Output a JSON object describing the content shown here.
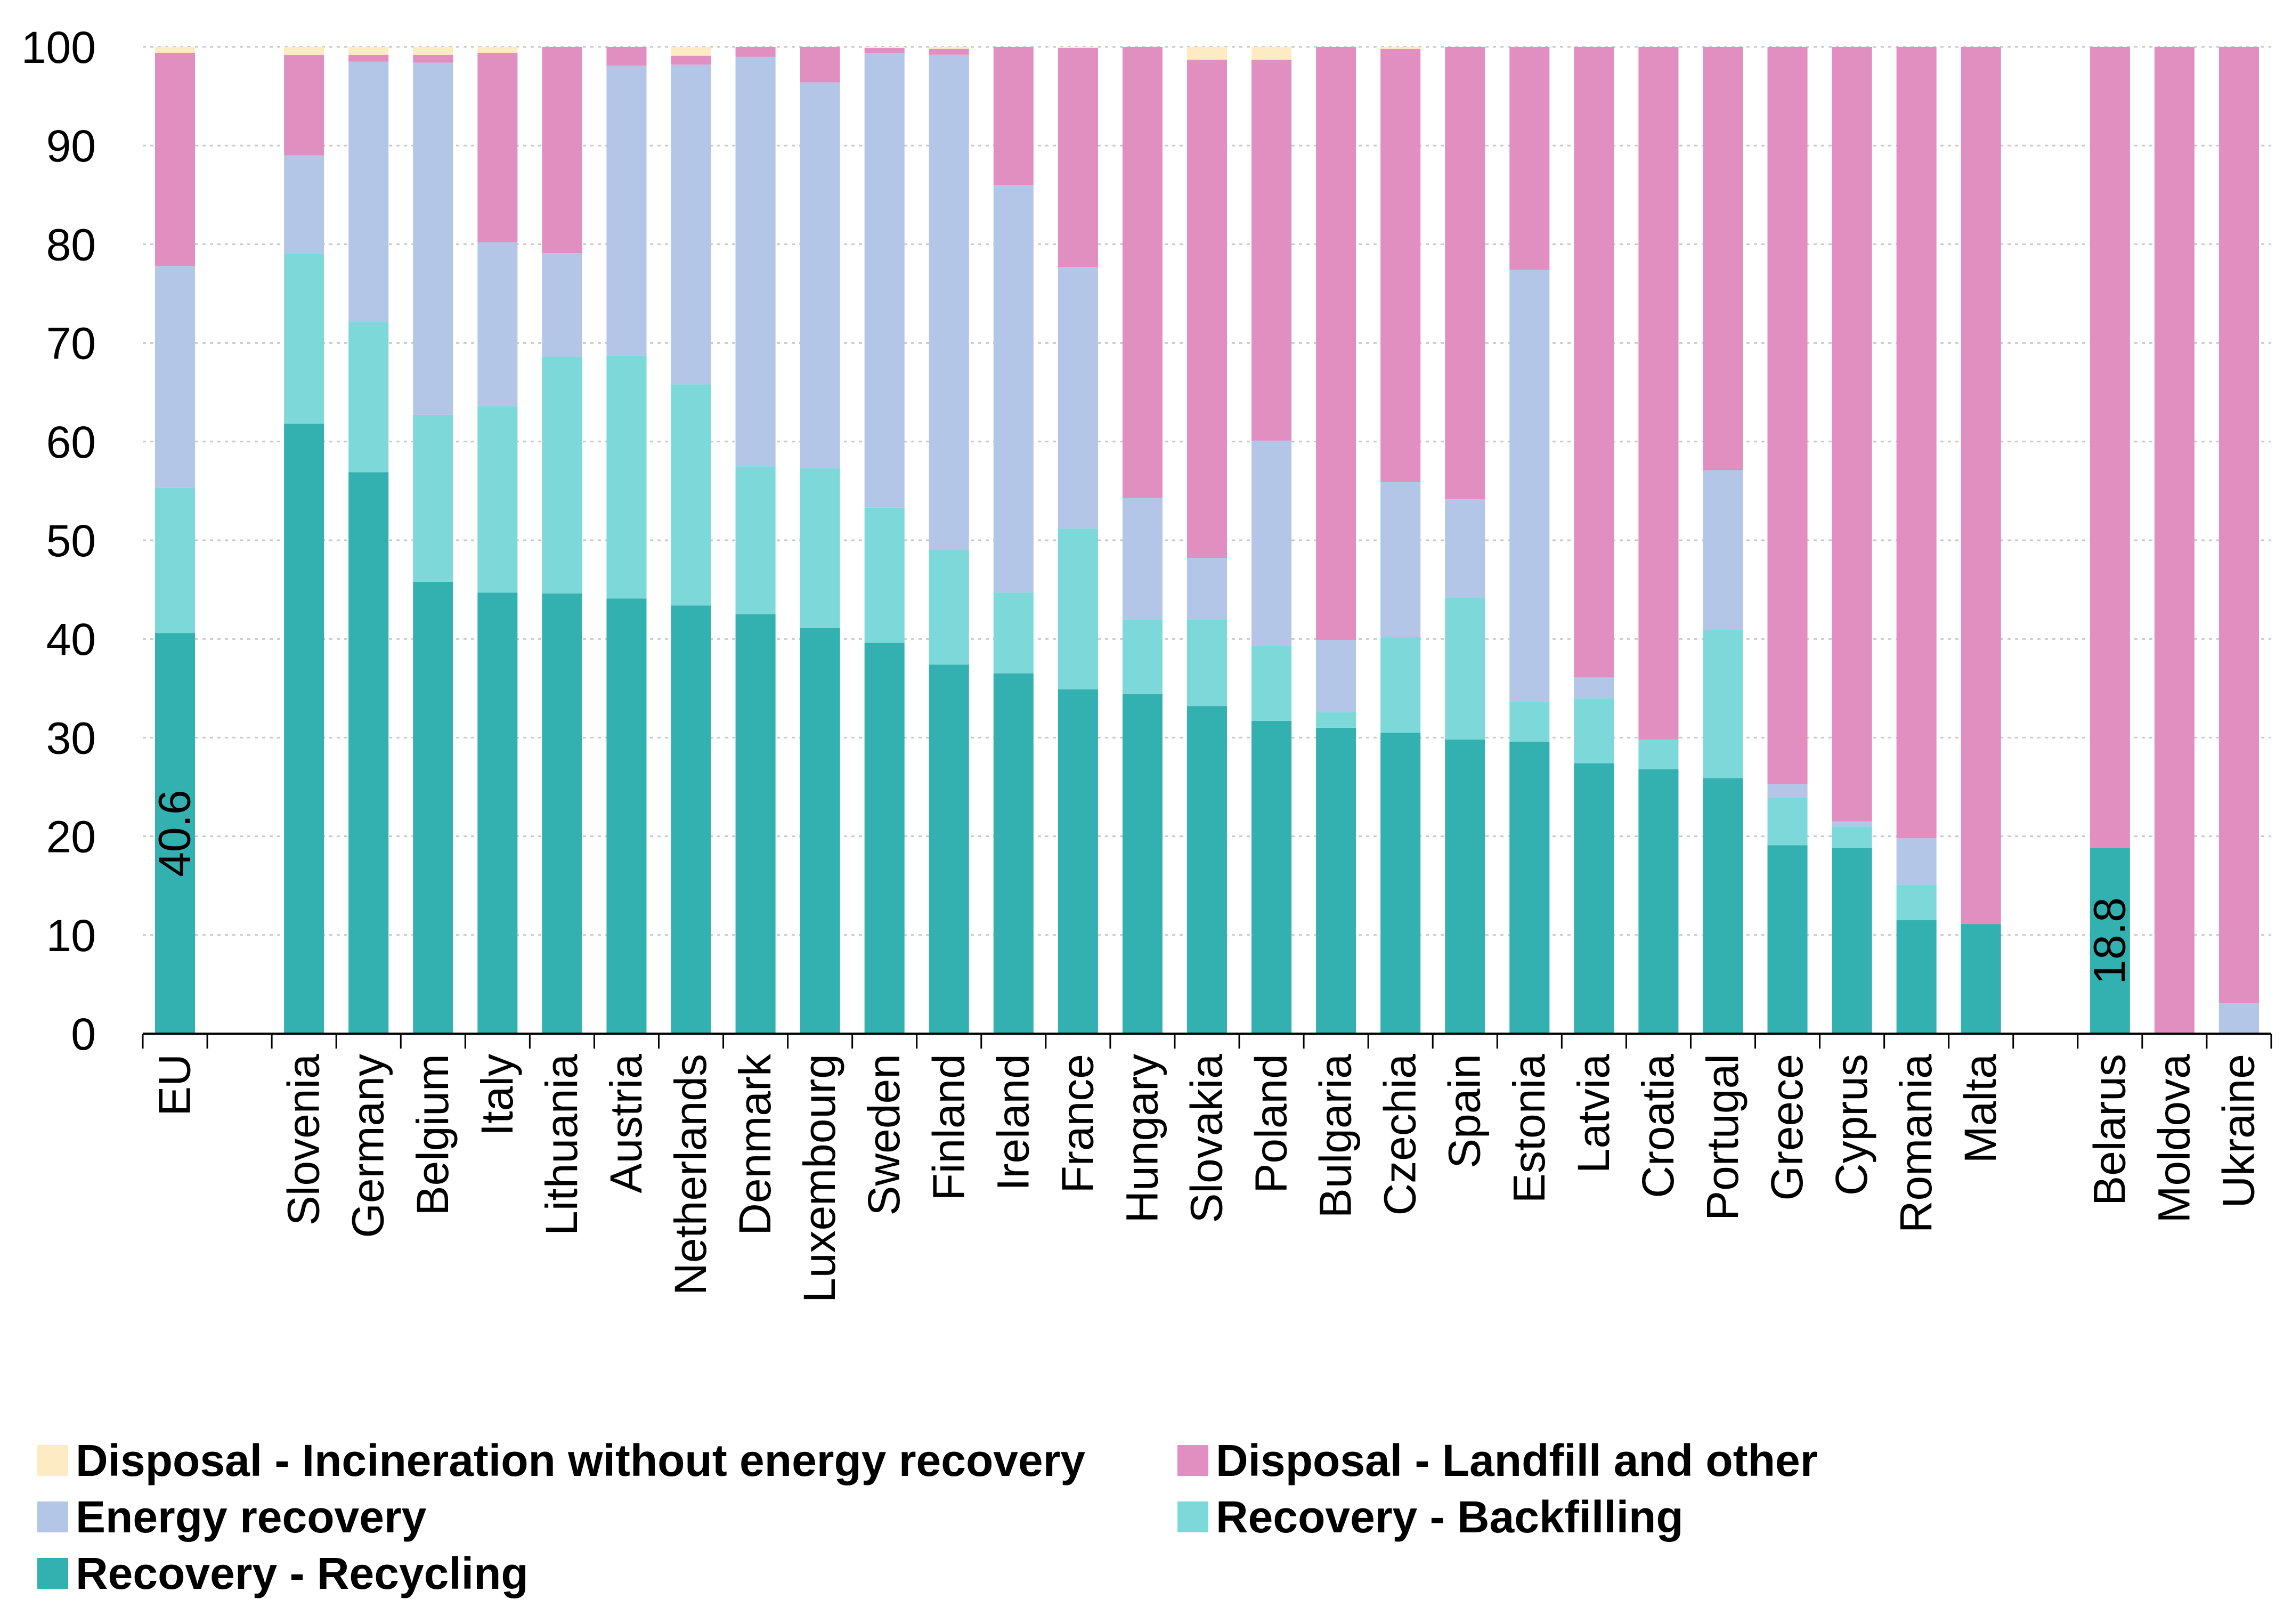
{
  "chart_data": {
    "type": "bar",
    "stacked": true,
    "title": "",
    "xlabel": "",
    "ylabel": "",
    "ylim": [
      0,
      100
    ],
    "yticks": [
      0,
      10,
      20,
      30,
      40,
      50,
      60,
      70,
      80,
      90,
      100
    ],
    "grid": true,
    "legend_position": "bottom",
    "categories": [
      "EU",
      "",
      "Slovenia",
      "Germany",
      "Belgium",
      "Italy",
      "Lithuania",
      "Austria",
      "Netherlands",
      "Denmark",
      "Luxembourg",
      "Sweden",
      "Finland",
      "Ireland",
      "France",
      "Hungary",
      "Slovakia",
      "Poland",
      "Bulgaria",
      "Czechia",
      "Spain",
      "Estonia",
      "Latvia",
      "Croatia",
      "Portugal",
      "Greece",
      "Cyprus",
      "Romania",
      "Malta",
      "",
      "Belarus",
      "Moldova",
      "Ukraine"
    ],
    "series": [
      {
        "name": "Recovery - Recycling",
        "color": "#33b0b0",
        "values": [
          40.6,
          null,
          61.8,
          56.9,
          45.8,
          44.7,
          44.6,
          44.1,
          43.4,
          42.5,
          41.1,
          39.6,
          37.4,
          36.5,
          34.9,
          34.4,
          33.2,
          31.7,
          31.0,
          30.5,
          29.8,
          29.6,
          27.4,
          26.8,
          25.9,
          19.1,
          18.8,
          11.5,
          11.1,
          null,
          18.8,
          0.0,
          0.0
        ]
      },
      {
        "name": "Recovery - Backfilling",
        "color": "#7dd9d9",
        "values": [
          14.7,
          null,
          17.2,
          15.2,
          16.9,
          18.9,
          24.0,
          24.6,
          22.4,
          15.0,
          16.2,
          13.7,
          11.6,
          8.2,
          16.3,
          7.6,
          8.7,
          7.6,
          1.6,
          9.7,
          14.4,
          4.0,
          6.6,
          3.0,
          15.0,
          4.8,
          2.2,
          3.6,
          0.0,
          null,
          0.0,
          0.0,
          0.0
        ]
      },
      {
        "name": "Energy recovery",
        "color": "#b3c6e8",
        "values": [
          22.5,
          null,
          10.0,
          26.4,
          35.7,
          16.6,
          10.5,
          29.4,
          32.4,
          41.5,
          39.1,
          46.1,
          50.2,
          41.3,
          26.5,
          12.3,
          6.3,
          20.8,
          7.3,
          15.7,
          10.0,
          43.8,
          2.1,
          0.0,
          16.2,
          1.4,
          0.5,
          4.7,
          0.0,
          null,
          0.0,
          0.0,
          3.1
        ]
      },
      {
        "name": "Disposal - Landfill and other",
        "color": "#e08fc0",
        "values": [
          21.6,
          null,
          10.2,
          0.7,
          0.8,
          19.2,
          20.9,
          1.9,
          0.9,
          1.0,
          3.6,
          0.5,
          0.6,
          14.0,
          22.2,
          45.7,
          50.5,
          38.6,
          60.1,
          43.9,
          45.8,
          22.6,
          63.9,
          70.2,
          42.9,
          74.7,
          78.5,
          80.2,
          88.9,
          null,
          81.2,
          100.0,
          96.9
        ]
      },
      {
        "name": "Disposal - Incineration without energy recovery",
        "color": "#fdebc4",
        "values": [
          0.6,
          null,
          0.8,
          0.8,
          0.8,
          0.6,
          0.0,
          0.0,
          0.9,
          0.0,
          0.0,
          0.1,
          0.2,
          0.0,
          0.1,
          0.0,
          1.3,
          1.3,
          0.0,
          0.2,
          0.0,
          0.0,
          0.0,
          0.0,
          0.0,
          0.0,
          0.0,
          0.0,
          0.0,
          null,
          0.0,
          0.0,
          0.0
        ]
      }
    ],
    "data_labels": [
      {
        "category": "EU",
        "series": "Recovery - Recycling",
        "text": "40.6"
      },
      {
        "category": "Belarus",
        "series": "Recovery - Recycling",
        "text": "18.8"
      }
    ],
    "legend_order": [
      "Disposal - Incineration without energy recovery",
      "Disposal - Landfill and other",
      "Energy recovery",
      "Recovery - Backfilling",
      "Recovery - Recycling"
    ]
  }
}
